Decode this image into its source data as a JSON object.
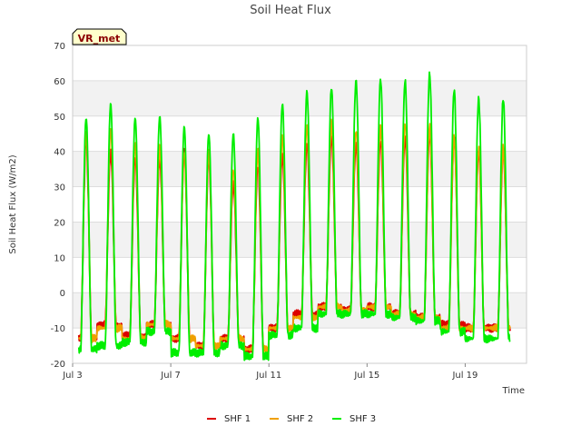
{
  "chart_data": {
    "type": "line",
    "title": "Soil Heat Flux",
    "xlabel": "Time",
    "ylabel": "Soil Heat Flux (W/m2)",
    "site_badge": "VR_met",
    "ylim": [
      -20,
      70
    ],
    "yticks": [
      -20,
      -10,
      0,
      10,
      20,
      30,
      40,
      50,
      60,
      70
    ],
    "xlim_days": [
      3,
      21.5
    ],
    "xticks": [
      {
        "day": 3,
        "label": "Jul 3"
      },
      {
        "day": 7,
        "label": "Jul 7"
      },
      {
        "day": 11,
        "label": "Jul 11"
      },
      {
        "day": 15,
        "label": "Jul 15"
      },
      {
        "day": 19,
        "label": "Jul 19"
      }
    ],
    "grid": true,
    "legend_position": "bottom-center",
    "day_start": 3.25,
    "day_end": 20.85,
    "peak_day_offset": 0.55,
    "series": [
      {
        "name": "SHF 1",
        "color": "#dd0000",
        "daily_max": [
          43,
          40,
          38,
          38,
          40,
          38,
          31,
          36,
          39,
          42,
          44,
          42,
          43,
          44,
          45,
          44,
          40
        ],
        "daily_min": [
          -13,
          -9,
          -12,
          -9,
          -13,
          -15,
          -13,
          -16,
          -10,
          -6,
          -4,
          -5,
          -4,
          -6,
          -7,
          -9,
          -10
        ]
      },
      {
        "name": "SHF 2",
        "color": "#f0a000",
        "daily_max": [
          45,
          46,
          42,
          41,
          40,
          40,
          35,
          40,
          44,
          47,
          48,
          46,
          47,
          48,
          47,
          44,
          41
        ],
        "daily_min": [
          -13,
          -10,
          -13,
          -9,
          -13,
          -15,
          -13,
          -16,
          -10,
          -7,
          -4,
          -5,
          -4,
          -6,
          -7,
          -10,
          -10
        ]
      },
      {
        "name": "SHF 3",
        "color": "#00ee00",
        "daily_max": [
          49.5,
          53.5,
          49.5,
          50,
          47,
          45,
          45,
          49.5,
          53.5,
          57,
          58,
          60,
          60.5,
          60,
          62,
          57.5,
          55
        ],
        "daily_min": [
          -16,
          -15,
          -14,
          -11,
          -17,
          -17,
          -15,
          -18,
          -12,
          -10,
          -6,
          -6,
          -6,
          -7,
          -8,
          -11,
          -13
        ]
      }
    ]
  }
}
